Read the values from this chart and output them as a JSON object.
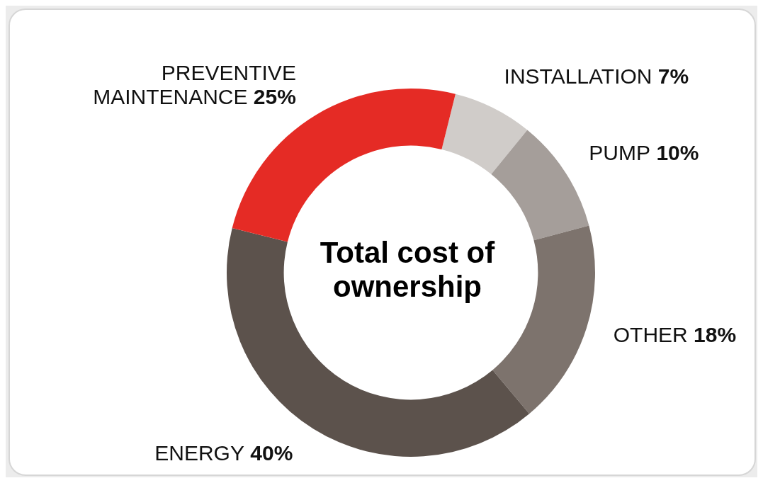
{
  "chart_data": {
    "type": "donut",
    "title": "Total cost of ownership",
    "categories": [
      "INSTALLATION",
      "PUMP",
      "OTHER",
      "ENERGY",
      "PREVENTIVE MAINTENANCE"
    ],
    "values": [
      7,
      10,
      18,
      40,
      25
    ],
    "colors": [
      "#d0ccc9",
      "#a59e9a",
      "#7d736d",
      "#5c524c",
      "#e52b25"
    ],
    "value_labels": [
      "7%",
      "10%",
      "18%",
      "40%",
      "25%"
    ]
  }
}
